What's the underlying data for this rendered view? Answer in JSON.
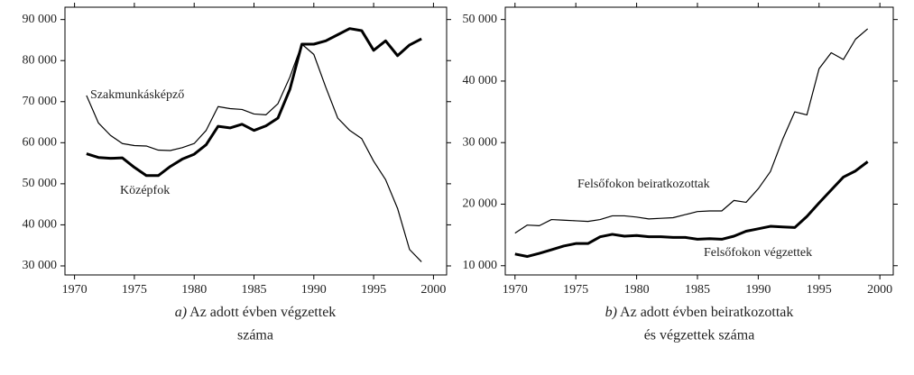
{
  "chart_data": [
    {
      "type": "line",
      "x": [
        1971,
        1972,
        1973,
        1974,
        1975,
        1976,
        1977,
        1978,
        1979,
        1980,
        1981,
        1982,
        1983,
        1984,
        1985,
        1986,
        1987,
        1988,
        1989,
        1990,
        1991,
        1992,
        1993,
        1994,
        1995,
        1996,
        1997,
        1998,
        1999
      ],
      "series": [
        {
          "name": "Szakmunkásképző",
          "color": "#000000",
          "values": [
            71500,
            64800,
            61800,
            59800,
            59300,
            59200,
            58200,
            58100,
            58800,
            59800,
            63000,
            68800,
            68300,
            68100,
            67000,
            66800,
            69500,
            76000,
            84000,
            81500,
            73500,
            66000,
            63000,
            61000,
            55500,
            51000,
            44000,
            34000,
            31000
          ]
        },
        {
          "name": "Középfok",
          "color": "#000000",
          "values": [
            57300,
            56400,
            56200,
            56300,
            54000,
            52000,
            52000,
            54200,
            56000,
            57200,
            59500,
            64000,
            63600,
            64500,
            63000,
            64100,
            66000,
            73000,
            84000,
            84000,
            84800,
            86300,
            87800,
            87300,
            82500,
            84800,
            81200,
            83800,
            85300
          ]
        }
      ],
      "xlim": [
        1969.2,
        2001.1
      ],
      "xticks": [
        1970,
        1975,
        1980,
        1985,
        1990,
        1995,
        2000
      ],
      "ylim": [
        27800,
        93000
      ],
      "yticks": [
        {
          "value": 30000,
          "label": "30 000"
        },
        {
          "value": 40000,
          "label": "40 000"
        },
        {
          "value": 50000,
          "label": "50 000"
        },
        {
          "value": 60000,
          "label": "60 000"
        },
        {
          "value": 70000,
          "label": "70 000"
        },
        {
          "value": 80000,
          "label": "80 000"
        },
        {
          "value": 90000,
          "label": "90 000"
        }
      ],
      "caption_label": "a)",
      "caption": [
        "Az adott évben végzettek",
        "száma"
      ]
    },
    {
      "type": "line",
      "x": [
        1970,
        1971,
        1972,
        1973,
        1974,
        1975,
        1976,
        1977,
        1978,
        1979,
        1980,
        1981,
        1982,
        1983,
        1984,
        1985,
        1986,
        1987,
        1988,
        1989,
        1990,
        1991,
        1992,
        1993,
        1994,
        1995,
        1996,
        1997,
        1998,
        1999
      ],
      "series": [
        {
          "name": "Felsőfokon beiratkozottak",
          "color": "#000000",
          "values": [
            15300,
            16600,
            16500,
            17500,
            17400,
            17300,
            17200,
            17500,
            18100,
            18100,
            17900,
            17600,
            17700,
            17800,
            18300,
            18800,
            18900,
            18900,
            20600,
            20300,
            22500,
            25300,
            30500,
            35000,
            34500,
            42000,
            44600,
            43500,
            46800,
            48500
          ]
        },
        {
          "name": "Felsőfokon végzettek",
          "color": "#000000",
          "values": [
            11900,
            11500,
            12000,
            12600,
            13200,
            13600,
            13600,
            14700,
            15100,
            14800,
            14900,
            14700,
            14700,
            14600,
            14600,
            14300,
            14400,
            14300,
            14800,
            15600,
            16000,
            16400,
            16300,
            16200,
            18000,
            20200,
            22300,
            24400,
            25400,
            26900
          ]
        }
      ],
      "xlim": [
        1969.2,
        2001.1
      ],
      "xticks": [
        1970,
        1975,
        1980,
        1985,
        1990,
        1995,
        2000
      ],
      "ylim": [
        8500,
        52000
      ],
      "yticks": [
        {
          "value": 10000,
          "label": "10 000"
        },
        {
          "value": 20000,
          "label": "20 000"
        },
        {
          "value": 30000,
          "label": "30 000"
        },
        {
          "value": 40000,
          "label": "40 000"
        },
        {
          "value": 50000,
          "label": "50 000"
        }
      ],
      "caption_label": "b)",
      "caption": [
        "Az adott évben beiratkozottak",
        "és végzettek száma"
      ]
    }
  ]
}
